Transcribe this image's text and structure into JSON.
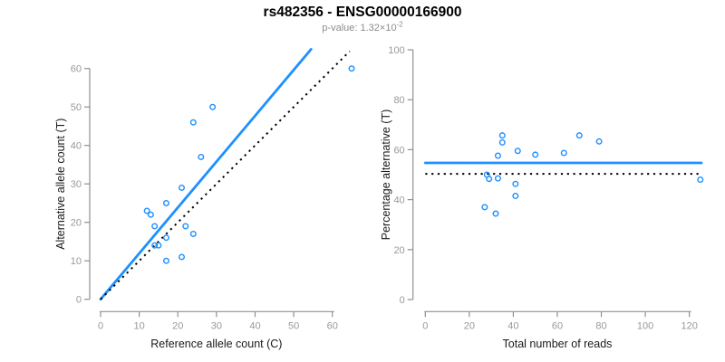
{
  "header": {
    "title": "rs482356 - ENSG00000166900",
    "subtitle_prefix": "p-value: 1.32×10",
    "subtitle_exponent": "-2"
  },
  "colors": {
    "accent": "#1E90FF",
    "identity": "#000000",
    "axis": "#909090",
    "tick_label": "#999999",
    "axis_title": "#1a1a1a",
    "subtitle": "#8c8c8c"
  },
  "chart_data": [
    {
      "type": "scatter",
      "name": "allele-counts-scatter",
      "xlabel": "Reference allele count (C)",
      "ylabel": "Alternative allele count (T)",
      "xlim": [
        0,
        65
      ],
      "ylim": [
        0,
        65
      ],
      "xticks": [
        0,
        10,
        20,
        30,
        40,
        50,
        60
      ],
      "yticks": [
        0,
        10,
        20,
        30,
        40,
        50,
        60
      ],
      "grid": false,
      "legend": "none",
      "points": [
        [
          29,
          50
        ],
        [
          24,
          46
        ],
        [
          26,
          37
        ],
        [
          21,
          29
        ],
        [
          17,
          25
        ],
        [
          12,
          23
        ],
        [
          13,
          22
        ],
        [
          14,
          19
        ],
        [
          22,
          19
        ],
        [
          24,
          17
        ],
        [
          17,
          16
        ],
        [
          14,
          14
        ],
        [
          15,
          14
        ],
        [
          17,
          10
        ],
        [
          21,
          11
        ],
        [
          65,
          60
        ]
      ],
      "lines": [
        {
          "name": "fit-line",
          "style": "solid",
          "color": "accent",
          "x1": 0,
          "y1": 0,
          "x2": 54.5,
          "y2": 65
        },
        {
          "name": "identity-line",
          "style": "dotted",
          "color": "identity",
          "x1": 0,
          "y1": 0,
          "x2": 64.5,
          "y2": 64.5
        }
      ]
    },
    {
      "type": "scatter",
      "name": "percentage-vs-reads-scatter",
      "xlabel": "Total number of reads",
      "ylabel": "Percentage alternative (T)",
      "xlim": [
        0,
        126
      ],
      "ylim": [
        0,
        100
      ],
      "xticks": [
        0,
        20,
        40,
        60,
        80,
        100,
        120
      ],
      "yticks": [
        0,
        20,
        40,
        60,
        80,
        100
      ],
      "grid": false,
      "legend": "none",
      "points": [
        [
          79,
          63.3
        ],
        [
          70,
          65.7
        ],
        [
          63,
          58.7
        ],
        [
          50,
          58
        ],
        [
          42,
          59.5
        ],
        [
          35,
          65.7
        ],
        [
          35,
          62.9
        ],
        [
          33,
          57.6
        ],
        [
          41,
          46.3
        ],
        [
          41,
          41.5
        ],
        [
          33,
          48.5
        ],
        [
          28,
          50
        ],
        [
          29,
          48.3
        ],
        [
          27,
          37
        ],
        [
          32,
          34.4
        ],
        [
          125,
          48
        ]
      ],
      "lines": [
        {
          "name": "mean-percentage-line",
          "style": "solid",
          "color": "accent",
          "x1": 0,
          "y1": 54.7,
          "x2": 125.5,
          "y2": 54.7
        },
        {
          "name": "expected-50-line",
          "style": "dotted",
          "color": "identity",
          "x1": 0,
          "y1": 50.3,
          "x2": 125.5,
          "y2": 50.3
        }
      ]
    }
  ]
}
